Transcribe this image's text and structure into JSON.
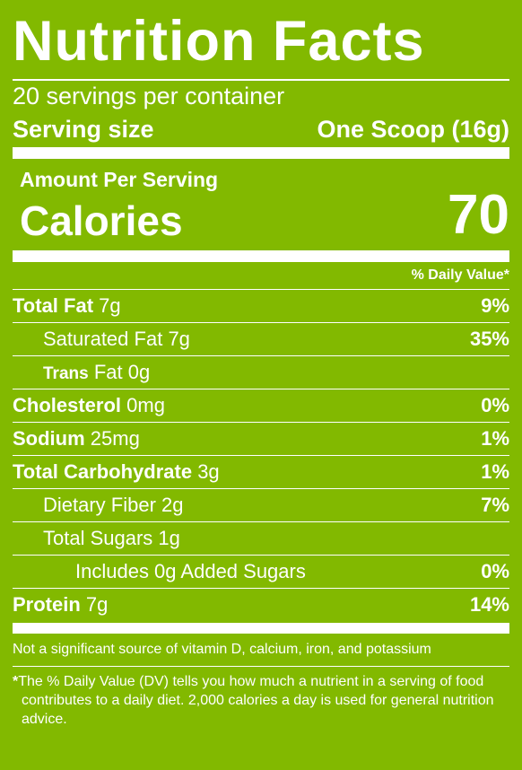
{
  "title": "Nutrition Facts",
  "servings": "20 servings per container",
  "serving_size": {
    "label": "Serving size",
    "value": "One Scoop (16g)"
  },
  "amount_per_serving": "Amount Per Serving",
  "calories": {
    "label": "Calories",
    "value": 70
  },
  "daily_value_header": "% Daily Value*",
  "nutrients": [
    {
      "name": "Total Fat",
      "amount": "7g",
      "dv": "9%"
    },
    {
      "name": "Saturated Fat",
      "amount": "7g",
      "dv": "35%"
    },
    {
      "name": "Trans",
      "amount": "Fat 0g"
    },
    {
      "name": "Cholesterol",
      "amount": "0mg",
      "dv": "0%"
    },
    {
      "name": "Sodium",
      "amount": "25mg",
      "dv": "1%"
    },
    {
      "name": "Total Carbohydrate",
      "amount": "3g",
      "dv": "1%"
    },
    {
      "name": "Dietary Fiber",
      "amount": "2g",
      "dv": "7%"
    },
    {
      "name": "Total Sugars",
      "amount": "1g"
    },
    {
      "name": "Includes 0g Added Sugars",
      "dv": "0%"
    },
    {
      "name": "Protein",
      "amount": "7g",
      "dv": "14%"
    }
  ],
  "vitamins_note": "Not a significant source of vitamin D, calcium, iron, and potassium",
  "footnote": {
    "marker": "*",
    "text": "The % Daily Value (DV) tells you how much a nutrient in a serving of food contributes to a daily diet. 2,000 calories a day is used for general nutrition advice."
  }
}
